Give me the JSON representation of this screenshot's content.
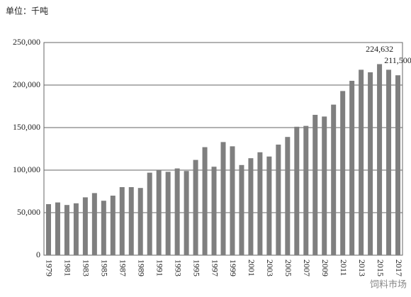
{
  "chart_data": {
    "type": "bar",
    "unit_label": "单位：千吨",
    "watermark": "饲料市场",
    "categories": [
      "1979",
      null,
      "1981",
      null,
      "1983",
      null,
      "1985",
      null,
      "1987",
      null,
      "1989",
      null,
      "1991",
      null,
      "1993",
      null,
      "1995",
      null,
      "1997",
      null,
      "1999",
      null,
      "2001",
      null,
      "2003",
      null,
      "2005",
      null,
      "2007",
      null,
      "2009",
      null,
      "2011",
      null,
      "2013",
      null,
      "2015",
      null,
      "2017"
    ],
    "values": [
      60000,
      62000,
      59000,
      61000,
      68000,
      73000,
      64000,
      70000,
      80000,
      80000,
      79000,
      97000,
      100000,
      98000,
      102000,
      99000,
      112000,
      127000,
      104000,
      133000,
      128000,
      106000,
      114000,
      121000,
      116000,
      130000,
      139000,
      151000,
      152000,
      165000,
      163000,
      177000,
      193000,
      205000,
      218000,
      215000,
      224632,
      218000,
      211500
    ],
    "value_labels": [
      null,
      null,
      null,
      null,
      null,
      null,
      null,
      null,
      null,
      null,
      null,
      null,
      null,
      null,
      null,
      null,
      null,
      null,
      null,
      null,
      null,
      null,
      null,
      null,
      null,
      null,
      null,
      null,
      null,
      null,
      null,
      null,
      null,
      null,
      null,
      null,
      "224,632",
      null,
      "211,500"
    ],
    "color": "#7f7f7f",
    "ylim": [
      0,
      250000
    ],
    "yticks": [
      0,
      {
        "value": 50000,
        "label": "50,000"
      },
      {
        "value": 100000,
        "label": "100,000"
      },
      {
        "value": 150000,
        "label": "150,000"
      },
      {
        "value": 200000,
        "label": "200,000"
      },
      {
        "value": 250000,
        "label": "250,000"
      }
    ],
    "grid": true
  }
}
